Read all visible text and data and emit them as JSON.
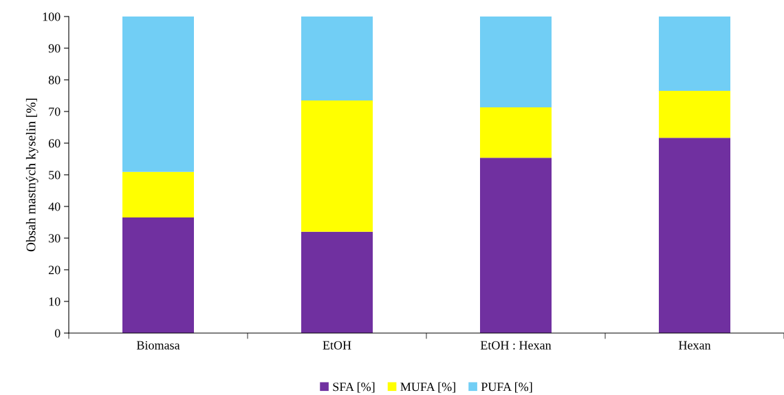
{
  "chart_data": {
    "type": "bar",
    "stacked": true,
    "ylabel": "Obsah mastných kyselin [%]",
    "categories": [
      "Biomasa",
      "EtOH",
      "EtOH : Hexan",
      "Hexan"
    ],
    "series": [
      {
        "name": "SFA [%]",
        "color": "#7030a0",
        "values": [
          36.5,
          32.0,
          55.4,
          61.7
        ]
      },
      {
        "name": "MUFA [%]",
        "color": "#ffff00",
        "values": [
          14.4,
          41.5,
          15.9,
          14.8
        ]
      },
      {
        "name": "PUFA [%]",
        "color": "#71cef5",
        "values": [
          49.1,
          26.5,
          28.7,
          23.5
        ]
      }
    ],
    "ylim": [
      0,
      100
    ],
    "yticks": [
      0,
      10,
      20,
      30,
      40,
      50,
      60,
      70,
      80,
      90,
      100
    ],
    "grid": false,
    "legend": "bottom"
  }
}
